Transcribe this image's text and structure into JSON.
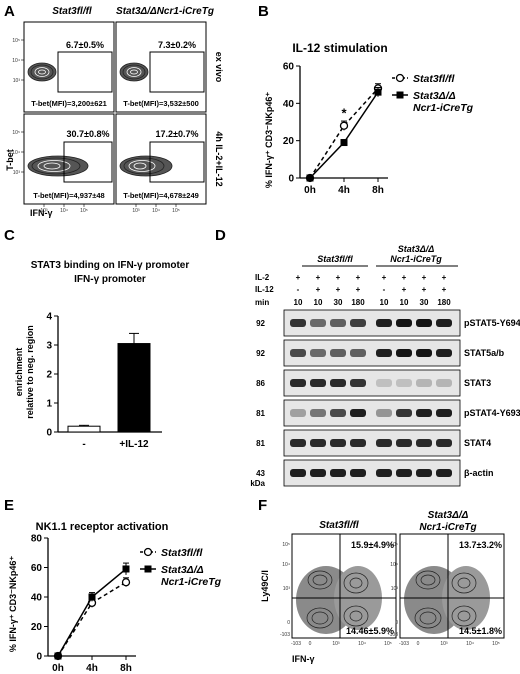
{
  "panel_letters": [
    "A",
    "B",
    "C",
    "D",
    "E",
    "F"
  ],
  "panel_a": {
    "col_headers": [
      "Stat3fl/fl",
      "Stat3Δ/ΔNcr1-iCreTg"
    ],
    "row_labels": [
      "ex vivo",
      "4h IL-2+IL-12"
    ],
    "y_axis_label": "T-bet",
    "x_axis_label": "IFN-γ",
    "plots": [
      {
        "gate": "6.7±0.5%",
        "mfi": "T-bet(MFI)=3,200±621"
      },
      {
        "gate": "7.3±0.2%",
        "mfi": "T-bet(MFI)=3,532±500"
      },
      {
        "gate": "30.7±0.8%",
        "mfi": "T-bet(MFI)=4,937±48"
      },
      {
        "gate": "17.2±0.7%",
        "mfi": "T-bet(MFI)=4,678±249"
      }
    ],
    "tick_labels": [
      "10³",
      "10⁴",
      "10⁵"
    ]
  },
  "chart_b": {
    "type": "line",
    "title": "IL-12 stimulation",
    "ylabel": "% IFN-γ⁺ CD3⁻NKp46⁺",
    "categories": [
      "0h",
      "4h",
      "8h"
    ],
    "ylim": [
      0,
      60
    ],
    "yticks": [
      "0",
      "20",
      "40",
      "60"
    ],
    "annotation": "*",
    "series": [
      {
        "name": "Stat3fl/fl",
        "values": [
          0,
          28,
          48
        ],
        "err": [
          0,
          2.5,
          2.5
        ],
        "marker": "open-circle",
        "dashed": true
      },
      {
        "name": "Stat3Δ/Δ Ncr1-iCreTg",
        "values": [
          0,
          19,
          46
        ],
        "err": [
          0,
          1.5,
          2.5
        ],
        "marker": "filled-square",
        "dashed": false
      }
    ]
  },
  "chart_c": {
    "type": "bar",
    "title": "STAT3 binding on IFN-γ promoter",
    "ylabel": "enrichment relative to neg. region",
    "categories": [
      "-",
      "+IL-12"
    ],
    "values": [
      0.2,
      3.05
    ],
    "err": [
      0.03,
      0.35
    ],
    "ylim": [
      0,
      4
    ],
    "yticks": [
      "0",
      "1",
      "2",
      "3",
      "4"
    ]
  },
  "panel_d": {
    "group_labels": [
      "Stat3fl/fl",
      "Stat3Δ/Δ Ncr1-iCreTg"
    ],
    "row_labels": [
      "IL-2",
      "IL-12",
      "min"
    ],
    "il2": [
      "+",
      "+",
      "+",
      "+",
      "+",
      "+",
      "+",
      "+"
    ],
    "il12": [
      "-",
      "+",
      "+",
      "+",
      "-",
      "+",
      "+",
      "+"
    ],
    "min": [
      "10",
      "10",
      "30",
      "180",
      "10",
      "10",
      "30",
      "180"
    ],
    "mw": [
      "92",
      "92",
      "86",
      "81",
      "81",
      "43"
    ],
    "kda": "kDa",
    "proteins": [
      "pSTAT5-Y694",
      "STAT5a/b",
      "STAT3",
      "pSTAT4-Y693",
      "STAT4",
      "β-actin"
    ]
  },
  "chart_e": {
    "type": "line",
    "title": "NK1.1 receptor activation",
    "ylabel": "% IFN-γ⁺ CD3⁻NKp46⁺",
    "categories": [
      "0h",
      "4h",
      "8h"
    ],
    "ylim": [
      0,
      80
    ],
    "yticks": [
      "0",
      "20",
      "40",
      "60",
      "80"
    ],
    "series": [
      {
        "name": "Stat3fl/fl",
        "values": [
          0,
          36,
          50
        ],
        "err": [
          0,
          3,
          3
        ],
        "marker": "open-circle",
        "dashed": true
      },
      {
        "name": "Stat3Δ/Δ Ncr1-iCreTg",
        "values": [
          0,
          40,
          59
        ],
        "err": [
          0,
          3,
          4
        ],
        "marker": "filled-square",
        "dashed": false
      }
    ]
  },
  "panel_f": {
    "titles": [
      "Stat3fl/fl",
      "Stat3Δ/ΔNcr1-iCreTg"
    ],
    "y_axis_label": "Ly49C/I",
    "x_axis_label": "IFN-γ",
    "plots": [
      {
        "upper_right": "15.9±4.9%",
        "lower_right": "14.46±5.9%"
      },
      {
        "upper_right": "13.7±3.2%",
        "lower_right": "14.5±1.8%"
      }
    ],
    "ytick_labels": [
      "10⁵",
      "10⁴",
      "10³",
      "0",
      "-103"
    ],
    "xtick_labels": [
      "-103",
      "0",
      "10³",
      "10⁴",
      "10⁵"
    ]
  }
}
